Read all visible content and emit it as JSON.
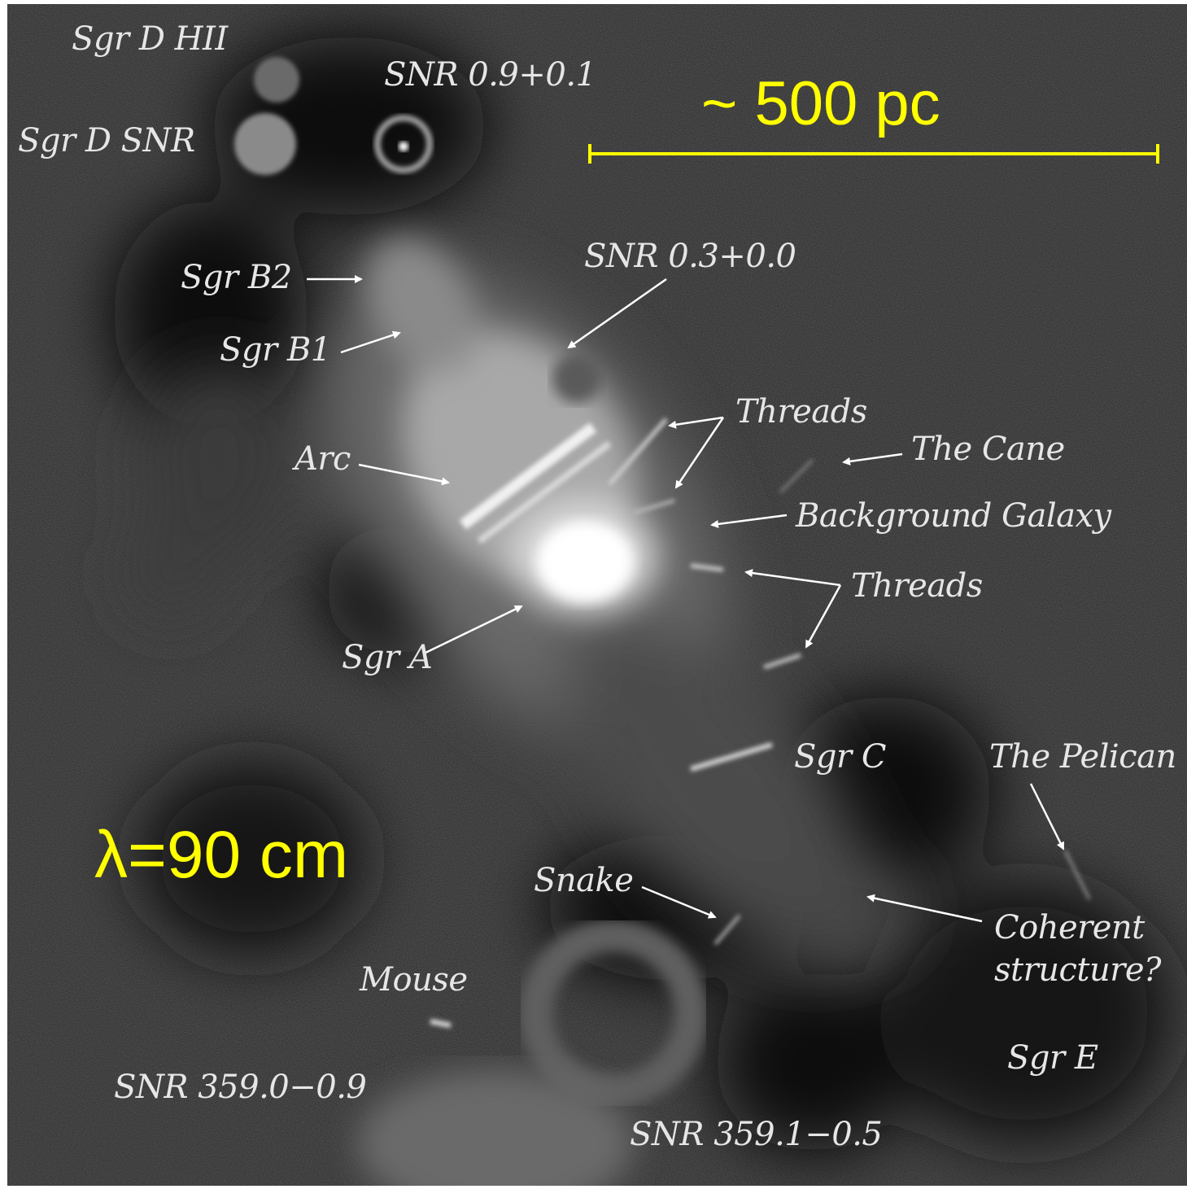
{
  "scale_bar": {
    "label": "~ 500 pc",
    "color": "#ffff00"
  },
  "wavelength": {
    "label": "λ=90 cm",
    "color": "#ffff00"
  },
  "label_color": "#e6e6e6",
  "labels": {
    "sgr_d_hii": "Sgr D HII",
    "snr_09": "SNR 0.9+0.1",
    "sgr_d_snr": "Sgr D SNR",
    "sgr_b2": "Sgr B2",
    "snr_03": "SNR 0.3+0.0",
    "sgr_b1": "Sgr B1",
    "threads_top": "Threads",
    "the_cane": "The Cane",
    "arc": "Arc",
    "background_galaxy": "Background Galaxy",
    "threads_mid": "Threads",
    "sgr_a": "Sgr A",
    "sgr_c": "Sgr C",
    "the_pelican": "The Pelican",
    "snake": "Snake",
    "coherent_1": "Coherent",
    "coherent_2": "structure?",
    "mouse": "Mouse",
    "sgr_e": "Sgr E",
    "snr_3590": "SNR 359.0−0.9",
    "snr_3591": "SNR 359.1−0.5"
  }
}
